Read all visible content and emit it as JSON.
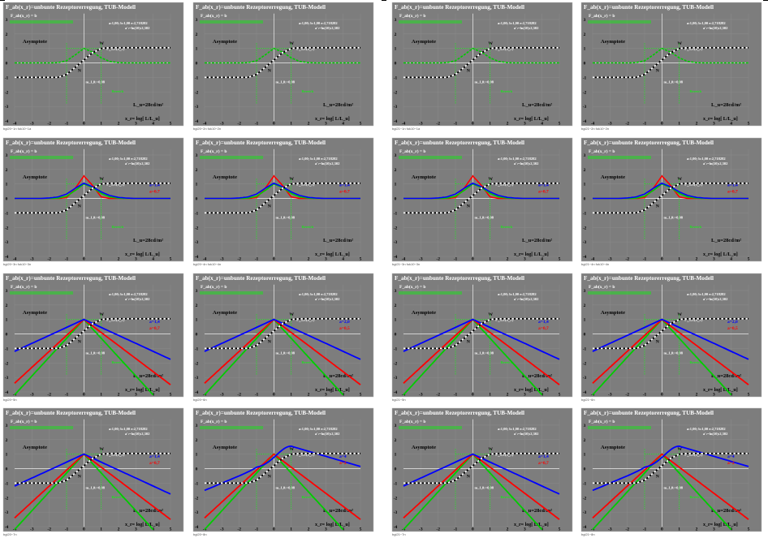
{
  "sheet": {
    "background": "#ffffff",
    "panel_background": "#7d7d7d"
  },
  "common": {
    "title": "F_ab(x_r)=unbunte Rezeptorerregung, TUB-Modell",
    "formula_line": "F_ab(x_r) = b",
    "asymptote": "Asymptote",
    "lu_label": "L_u=28cd/m²",
    "x_axis_label": "x_r= log[ L/L_u]",
    "params_a": "a:1,00; b:1,00 e:2,718282",
    "params_b": "a':=ln(10):2,302",
    "n_label": "N",
    "w_label": "W",
    "m_label": "m_1,0:=0,98",
    "bereich": "Bereich",
    "x_ticks": [
      "-4",
      "-3",
      "-2",
      "-1",
      "0",
      "1",
      "2",
      "3",
      "4",
      "5"
    ],
    "y_ticks": [
      "-4",
      "-3",
      "-2",
      "-1",
      "0",
      "1",
      "2",
      "3"
    ]
  },
  "panels": [
    {
      "code": "bgi20−1n fuk10−1a",
      "style": "a"
    },
    {
      "code": "bgi20−2n fuk10−2n",
      "style": "a"
    },
    {
      "code": "bgi21−1n fuk10−1a",
      "style": "a"
    },
    {
      "code": "bgi21−2n fuk10−2n",
      "style": "a"
    },
    {
      "code": "bgi20−3n fuk10−3n",
      "style": "b",
      "la": "a=1,4",
      "lb": "a=0,7"
    },
    {
      "code": "bgi20−4n fuk10−4n",
      "style": "b",
      "la": "a=1,4",
      "lb": "a=0,7"
    },
    {
      "code": "bgi21−3n fuk10−3n",
      "style": "b",
      "la": "a=1,4",
      "lb": "a=0,7"
    },
    {
      "code": "bgi21−4n fuk10−4n",
      "style": "b",
      "la": "a=1,4",
      "lb": "a=0,7"
    },
    {
      "code": "bgi20−5n",
      "style": "c",
      "la": "a=1,4",
      "lb": "a=0,7"
    },
    {
      "code": "bgi20−6n",
      "style": "c",
      "la": "a=2,0",
      "lb": "a=0,5"
    },
    {
      "code": "bgi21−5n",
      "style": "c",
      "la": "a=1,4",
      "lb": "a=0,7"
    },
    {
      "code": "bgi21−6n",
      "style": "c",
      "la": "a=2,0",
      "lb": "a=0,5"
    },
    {
      "code": "bgi20−7n",
      "style": "d",
      "la": "a=1,4",
      "lb": "a=0,7"
    },
    {
      "code": "bgi20−8n",
      "style": "e",
      "la": "a=4",
      "lb": "a=2"
    },
    {
      "code": "bgi21−7n",
      "style": "d",
      "la": "a=1,4",
      "lb": "a=0,7"
    },
    {
      "code": "bgi21−8n",
      "style": "e",
      "la": "a=4",
      "lb": "a=2"
    }
  ],
  "chart_data": {
    "type": "line",
    "xlim": [
      -4,
      5
    ],
    "ylim": [
      -4,
      3.5
    ],
    "x": [
      -4,
      -3.5,
      -3,
      -2.5,
      -2,
      -1.5,
      -1,
      -0.5,
      0,
      0.5,
      1,
      1.5,
      2,
      2.5,
      3,
      3.5,
      4,
      4.5,
      5
    ],
    "series": [
      {
        "color": "#000000",
        "values": [
          -1,
          -1,
          -1,
          -1,
          -1,
          -1,
          -0.8,
          -0.3,
          0.2,
          0.7,
          1,
          1.05,
          1.05,
          1.05,
          1.05,
          1.05,
          1.05,
          1.05,
          1.05
        ]
      },
      {
        "color": "#00cc00",
        "values": [
          0,
          0,
          0,
          0,
          0,
          0.02,
          0.15,
          0.55,
          1.0,
          0.75,
          0.35,
          0.1,
          0.02,
          0,
          0,
          0,
          0,
          0,
          0
        ]
      },
      {
        "color": "#0000ff",
        "values": [
          0,
          0,
          0,
          0,
          0.03,
          0.1,
          0.3,
          0.7,
          1.05,
          0.8,
          0.45,
          0.2,
          0.07,
          0.02,
          0,
          0,
          0,
          0,
          0
        ]
      },
      {
        "color": "#ff0000",
        "values": [
          0,
          0,
          0,
          0,
          0,
          0,
          0.05,
          0.7,
          1.55,
          0.9,
          0.1,
          0,
          0,
          0,
          0,
          0,
          0,
          0,
          0
        ]
      }
    ]
  }
}
